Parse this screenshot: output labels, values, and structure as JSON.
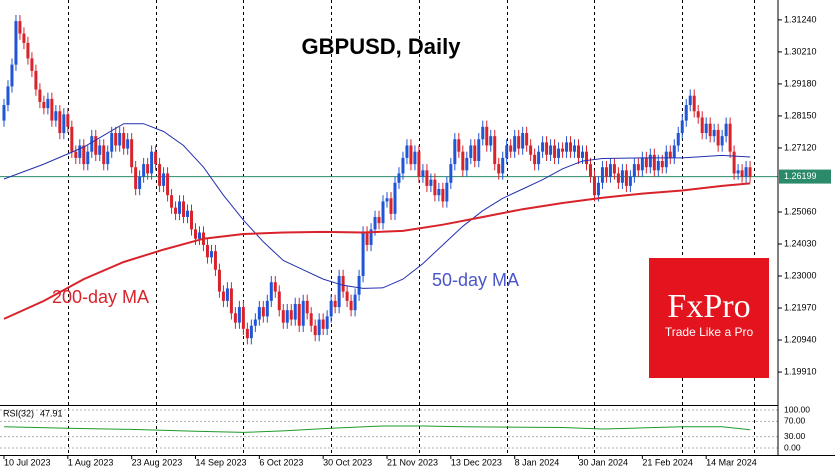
{
  "chart_data": {
    "type": "candlestick",
    "title": "GBPUSD, Daily",
    "xlim": [
      -1,
      194
    ],
    "xticks": [
      {
        "value": 0,
        "label": "10 Jul 2023"
      },
      {
        "value": 16,
        "label": "1 Aug 2023"
      },
      {
        "value": 32,
        "label": "23 Aug 2023"
      },
      {
        "value": 48,
        "label": "14 Sep 2023"
      },
      {
        "value": 64,
        "label": "6 Oct 2023"
      },
      {
        "value": 80,
        "label": "30 Oct 2023"
      },
      {
        "value": 96,
        "label": "21 Nov 2023"
      },
      {
        "value": 112,
        "label": "13 Dec 2023"
      },
      {
        "value": 128,
        "label": "8 Jan 2024"
      },
      {
        "value": 144,
        "label": "30 Jan 2024"
      },
      {
        "value": 160,
        "label": "21 Feb 2024"
      },
      {
        "value": 176,
        "label": "14 Mar 2024"
      }
    ],
    "period_separators": [
      16,
      38,
      60,
      82,
      104,
      126,
      148,
      170,
      188
    ],
    "ylim": [
      1.1885,
      1.3188
    ],
    "yticks": [
      {
        "value": 1.3124,
        "label": "1.31240"
      },
      {
        "value": 1.3021,
        "label": "1.30210"
      },
      {
        "value": 1.2918,
        "label": "1.29180"
      },
      {
        "value": 1.2815,
        "label": "1.28150"
      },
      {
        "value": 1.2712,
        "label": "1.27120"
      },
      {
        "value": 1.2506,
        "label": "1.25060"
      },
      {
        "value": 1.2403,
        "label": "1.24030"
      },
      {
        "value": 1.23,
        "label": "1.23000"
      },
      {
        "value": 1.2197,
        "label": "1.21970"
      },
      {
        "value": 1.2094,
        "label": "1.20940"
      },
      {
        "value": 1.1991,
        "label": "1.19910"
      }
    ],
    "up_color": "#1f55d6",
    "down_color": "#d9232b",
    "open": [
      1.28,
      1.285,
      1.291,
      1.298,
      1.312,
      1.308,
      1.305,
      1.3,
      1.296,
      1.29,
      1.286,
      1.284,
      1.287,
      1.28,
      1.283,
      1.276,
      1.282,
      1.278,
      1.27,
      1.268,
      1.272,
      1.266,
      1.27,
      1.275,
      1.269,
      1.272,
      1.266,
      1.27,
      1.276,
      1.272,
      1.276,
      1.271,
      1.274,
      1.265,
      1.258,
      1.262,
      1.266,
      1.263,
      1.27,
      1.266,
      1.259,
      1.263,
      1.256,
      1.252,
      1.25,
      1.254,
      1.249,
      1.251,
      1.245,
      1.242,
      1.244,
      1.24,
      1.236,
      1.238,
      1.232,
      1.225,
      1.222,
      1.226,
      1.218,
      1.215,
      1.22,
      1.213,
      1.21,
      1.214,
      1.216,
      1.22,
      1.217,
      1.222,
      1.228,
      1.225,
      1.219,
      1.215,
      1.219,
      1.216,
      1.221,
      1.214,
      1.222,
      1.218,
      1.214,
      1.211,
      1.216,
      1.213,
      1.217,
      1.222,
      1.22,
      1.23,
      1.225,
      1.222,
      1.219,
      1.224,
      1.23,
      1.244,
      1.24,
      1.245,
      1.249,
      1.247,
      1.254,
      1.255,
      1.25,
      1.26,
      1.263,
      1.268,
      1.272,
      1.266,
      1.27,
      1.262,
      1.264,
      1.259,
      1.261,
      1.256,
      1.258,
      1.254,
      1.26,
      1.266,
      1.274,
      1.27,
      1.264,
      1.268,
      1.272,
      1.267,
      1.274,
      1.278,
      1.272,
      1.275,
      1.266,
      1.263,
      1.268,
      1.272,
      1.27,
      1.275,
      1.271,
      1.276,
      1.272,
      1.269,
      1.266,
      1.27,
      1.273,
      1.269,
      1.272,
      1.268,
      1.271,
      1.27,
      1.273,
      1.27,
      1.272,
      1.268,
      1.27,
      1.266,
      1.262,
      1.256,
      1.26,
      1.265,
      1.262,
      1.266,
      1.263,
      1.26,
      1.264,
      1.259,
      1.262,
      1.266,
      1.264,
      1.268,
      1.265,
      1.269,
      1.264,
      1.267,
      1.265,
      1.27,
      1.268,
      1.272,
      1.276,
      1.28,
      1.285,
      1.288,
      1.283,
      1.281,
      1.276,
      1.279,
      1.275,
      1.277,
      1.272,
      1.275,
      1.279,
      1.27,
      1.263,
      1.264,
      1.262,
      1.265
    ],
    "high": [
      1.287,
      1.293,
      1.3,
      1.314,
      1.314,
      1.31,
      1.307,
      1.302,
      1.298,
      1.292,
      1.288,
      1.289,
      1.289,
      1.285,
      1.285,
      1.284,
      1.284,
      1.28,
      1.272,
      1.274,
      1.274,
      1.272,
      1.277,
      1.277,
      1.274,
      1.274,
      1.272,
      1.278,
      1.278,
      1.278,
      1.278,
      1.276,
      1.276,
      1.267,
      1.264,
      1.268,
      1.268,
      1.272,
      1.272,
      1.268,
      1.265,
      1.265,
      1.258,
      1.254,
      1.256,
      1.256,
      1.253,
      1.253,
      1.247,
      1.246,
      1.246,
      1.242,
      1.24,
      1.24,
      1.234,
      1.227,
      1.228,
      1.228,
      1.22,
      1.222,
      1.222,
      1.215,
      1.216,
      1.218,
      1.222,
      1.222,
      1.224,
      1.23,
      1.23,
      1.227,
      1.221,
      1.221,
      1.221,
      1.223,
      1.223,
      1.224,
      1.224,
      1.22,
      1.216,
      1.218,
      1.218,
      1.219,
      1.224,
      1.224,
      1.232,
      1.232,
      1.227,
      1.224,
      1.226,
      1.232,
      1.246,
      1.246,
      1.247,
      1.251,
      1.251,
      1.256,
      1.257,
      1.257,
      1.262,
      1.265,
      1.27,
      1.274,
      1.274,
      1.272,
      1.272,
      1.266,
      1.266,
      1.263,
      1.263,
      1.26,
      1.26,
      1.262,
      1.268,
      1.276,
      1.276,
      1.272,
      1.27,
      1.274,
      1.274,
      1.276,
      1.28,
      1.28,
      1.277,
      1.277,
      1.268,
      1.27,
      1.274,
      1.274,
      1.277,
      1.277,
      1.278,
      1.278,
      1.274,
      1.271,
      1.272,
      1.275,
      1.275,
      1.274,
      1.274,
      1.273,
      1.273,
      1.275,
      1.275,
      1.274,
      1.274,
      1.272,
      1.272,
      1.268,
      1.264,
      1.262,
      1.267,
      1.267,
      1.268,
      1.268,
      1.265,
      1.266,
      1.266,
      1.264,
      1.268,
      1.268,
      1.27,
      1.27,
      1.271,
      1.271,
      1.269,
      1.269,
      1.272,
      1.272,
      1.274,
      1.278,
      1.282,
      1.287,
      1.29,
      1.29,
      1.285,
      1.283,
      1.281,
      1.281,
      1.279,
      1.279,
      1.277,
      1.281,
      1.281,
      1.272,
      1.266,
      1.266,
      1.267,
      1.267
    ],
    "low": [
      1.278,
      1.283,
      1.289,
      1.296,
      1.306,
      1.303,
      1.298,
      1.294,
      1.288,
      1.284,
      1.282,
      1.282,
      1.278,
      1.278,
      1.274,
      1.274,
      1.276,
      1.268,
      1.266,
      1.266,
      1.264,
      1.264,
      1.268,
      1.267,
      1.267,
      1.264,
      1.264,
      1.268,
      1.27,
      1.27,
      1.269,
      1.269,
      1.263,
      1.256,
      1.256,
      1.26,
      1.261,
      1.261,
      1.264,
      1.257,
      1.257,
      1.254,
      1.25,
      1.248,
      1.248,
      1.247,
      1.247,
      1.243,
      1.24,
      1.24,
      1.238,
      1.234,
      1.234,
      1.23,
      1.223,
      1.22,
      1.22,
      1.216,
      1.213,
      1.213,
      1.211,
      1.208,
      1.208,
      1.212,
      1.214,
      1.215,
      1.215,
      1.22,
      1.223,
      1.217,
      1.213,
      1.213,
      1.214,
      1.214,
      1.212,
      1.212,
      1.216,
      1.212,
      1.209,
      1.209,
      1.211,
      1.211,
      1.215,
      1.218,
      1.218,
      1.223,
      1.22,
      1.217,
      1.217,
      1.222,
      1.228,
      1.238,
      1.238,
      1.243,
      1.245,
      1.245,
      1.252,
      1.248,
      1.248,
      1.258,
      1.261,
      1.266,
      1.264,
      1.264,
      1.26,
      1.26,
      1.257,
      1.257,
      1.254,
      1.254,
      1.252,
      1.252,
      1.258,
      1.264,
      1.268,
      1.262,
      1.262,
      1.266,
      1.265,
      1.265,
      1.272,
      1.27,
      1.27,
      1.264,
      1.261,
      1.261,
      1.266,
      1.268,
      1.268,
      1.269,
      1.269,
      1.27,
      1.267,
      1.264,
      1.264,
      1.268,
      1.267,
      1.267,
      1.266,
      1.266,
      1.268,
      1.268,
      1.268,
      1.268,
      1.266,
      1.266,
      1.264,
      1.26,
      1.254,
      1.254,
      1.258,
      1.26,
      1.26,
      1.261,
      1.258,
      1.258,
      1.257,
      1.257,
      1.26,
      1.262,
      1.262,
      1.263,
      1.263,
      1.262,
      1.262,
      1.263,
      1.263,
      1.266,
      1.266,
      1.27,
      1.274,
      1.278,
      1.283,
      1.281,
      1.279,
      1.274,
      1.274,
      1.273,
      1.273,
      1.27,
      1.27,
      1.273,
      1.268,
      1.261,
      1.261,
      1.26,
      1.26,
      1.26
    ],
    "close": [
      1.285,
      1.291,
      1.298,
      1.312,
      1.308,
      1.305,
      1.3,
      1.296,
      1.29,
      1.286,
      1.284,
      1.287,
      1.28,
      1.283,
      1.276,
      1.282,
      1.278,
      1.27,
      1.268,
      1.272,
      1.266,
      1.27,
      1.275,
      1.269,
      1.272,
      1.266,
      1.27,
      1.276,
      1.272,
      1.276,
      1.271,
      1.274,
      1.265,
      1.258,
      1.262,
      1.266,
      1.263,
      1.27,
      1.266,
      1.259,
      1.263,
      1.256,
      1.252,
      1.25,
      1.254,
      1.249,
      1.251,
      1.245,
      1.242,
      1.244,
      1.24,
      1.236,
      1.238,
      1.232,
      1.225,
      1.222,
      1.226,
      1.218,
      1.215,
      1.22,
      1.213,
      1.21,
      1.214,
      1.216,
      1.22,
      1.217,
      1.222,
      1.228,
      1.225,
      1.219,
      1.215,
      1.219,
      1.216,
      1.221,
      1.214,
      1.222,
      1.218,
      1.214,
      1.211,
      1.216,
      1.213,
      1.217,
      1.222,
      1.22,
      1.23,
      1.225,
      1.222,
      1.219,
      1.224,
      1.23,
      1.244,
      1.24,
      1.245,
      1.249,
      1.247,
      1.254,
      1.255,
      1.25,
      1.26,
      1.263,
      1.268,
      1.272,
      1.266,
      1.27,
      1.262,
      1.264,
      1.259,
      1.261,
      1.256,
      1.258,
      1.254,
      1.26,
      1.266,
      1.274,
      1.27,
      1.264,
      1.268,
      1.272,
      1.267,
      1.274,
      1.278,
      1.272,
      1.275,
      1.266,
      1.263,
      1.268,
      1.272,
      1.27,
      1.275,
      1.271,
      1.276,
      1.272,
      1.269,
      1.266,
      1.27,
      1.273,
      1.269,
      1.272,
      1.268,
      1.271,
      1.27,
      1.273,
      1.27,
      1.272,
      1.268,
      1.27,
      1.266,
      1.262,
      1.256,
      1.26,
      1.265,
      1.262,
      1.266,
      1.263,
      1.26,
      1.264,
      1.259,
      1.262,
      1.266,
      1.264,
      1.268,
      1.265,
      1.269,
      1.264,
      1.267,
      1.265,
      1.27,
      1.268,
      1.272,
      1.276,
      1.28,
      1.285,
      1.288,
      1.283,
      1.281,
      1.276,
      1.279,
      1.275,
      1.277,
      1.272,
      1.275,
      1.279,
      1.27,
      1.263,
      1.264,
      1.262,
      1.265,
      1.262
    ],
    "last_price": 1.26199,
    "last_price_color": "#2b8a6a",
    "series": [
      {
        "name": "50-day MA",
        "color": "#2430b0",
        "x": [
          0,
          10,
          20,
          30,
          35,
          40,
          45,
          50,
          55,
          60,
          65,
          70,
          75,
          80,
          85,
          90,
          95,
          100,
          105,
          110,
          115,
          120,
          125,
          130,
          135,
          140,
          145,
          150,
          160,
          170,
          180,
          187
        ],
        "values": [
          1.2612,
          1.266,
          1.2715,
          1.279,
          1.279,
          1.2765,
          1.272,
          1.265,
          1.256,
          1.248,
          1.241,
          1.235,
          1.232,
          1.229,
          1.227,
          1.226,
          1.2262,
          1.229,
          1.234,
          1.24,
          1.246,
          1.251,
          1.255,
          1.258,
          1.261,
          1.2645,
          1.267,
          1.2678,
          1.268,
          1.268,
          1.2688,
          1.2683
        ]
      },
      {
        "name": "200-day MA",
        "color": "#d9232b",
        "x": [
          0,
          10,
          20,
          30,
          40,
          50,
          60,
          70,
          80,
          90,
          100,
          110,
          120,
          130,
          140,
          150,
          160,
          170,
          180,
          187
        ],
        "values": [
          1.2162,
          1.222,
          1.229,
          1.2345,
          1.2385,
          1.242,
          1.2435,
          1.244,
          1.2442,
          1.244,
          1.2445,
          1.2465,
          1.249,
          1.2515,
          1.2535,
          1.2552,
          1.2565,
          1.2575,
          1.259,
          1.2598
        ]
      }
    ],
    "rsi": {
      "label": "RSI(32)",
      "last": 47.91,
      "color": "#1f9a2a",
      "ylim": [
        0,
        100
      ],
      "yticks": [
        {
          "value": 100,
          "label": "100.00"
        },
        {
          "value": 70,
          "label": "70.00"
        },
        {
          "value": 30,
          "label": "30.00"
        },
        {
          "value": 0,
          "label": "0.00"
        }
      ],
      "x": [
        0,
        16,
        32,
        48,
        60,
        70,
        82,
        95,
        105,
        115,
        126,
        140,
        150,
        160,
        170,
        180,
        187
      ],
      "values": [
        56,
        52,
        49,
        44,
        41,
        45,
        52,
        58,
        58,
        56,
        55,
        54,
        50,
        53,
        56,
        56,
        47.91
      ]
    }
  },
  "logo": {
    "brand": "FxPro",
    "tagline": "Trade Like a Pro"
  }
}
